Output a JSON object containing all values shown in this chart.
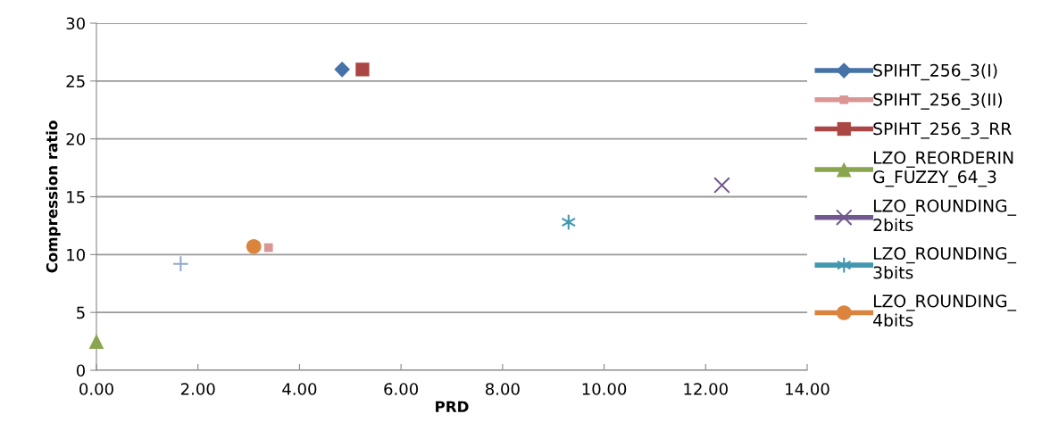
{
  "chart_data": {
    "type": "scatter",
    "xlabel": "PRD",
    "ylabel": "Compression ratio",
    "xlim": [
      0,
      14
    ],
    "ylim": [
      0,
      30
    ],
    "xticks": [
      {
        "value": 0,
        "label": "0.00"
      },
      {
        "value": 2,
        "label": "2.00"
      },
      {
        "value": 4,
        "label": "4.00"
      },
      {
        "value": 6,
        "label": "6.00"
      },
      {
        "value": 8,
        "label": "8.00"
      },
      {
        "value": 10,
        "label": "10.00"
      },
      {
        "value": 12,
        "label": "12.00"
      },
      {
        "value": 14,
        "label": "14.00"
      }
    ],
    "yticks": [
      0,
      5,
      10,
      15,
      20,
      25,
      30
    ],
    "grid": "y",
    "legend": "right",
    "series": [
      {
        "name": "SPIHT_256_3(I)",
        "color": "#4572a7",
        "marker": "diamond",
        "x": [
          4.84
        ],
        "values": [
          26.0
        ]
      },
      {
        "name": "SPIHT_256_3(II)",
        "color": "#d99694",
        "marker": "square",
        "x": [
          3.39
        ],
        "values": [
          10.6
        ]
      },
      {
        "name": "SPIHT_256_3_RR",
        "color": "#aa4643",
        "marker": "square",
        "x": [
          5.24
        ],
        "values": [
          26.0
        ]
      },
      {
        "name": "LZO_REORDERING_FUZZY_64_3",
        "color": "#89a54e",
        "marker": "triangle",
        "x": [
          0.0
        ],
        "values": [
          2.5
        ]
      },
      {
        "name": "LZO_ROUNDING_2bits",
        "color": "#71588f",
        "marker": "cross",
        "x": [
          12.32
        ],
        "values": [
          16.0
        ]
      },
      {
        "name": "LZO_ROUNDING_3bits",
        "color": "#4198af",
        "marker": "cross",
        "x": [
          9.3
        ],
        "values": [
          12.8
        ]
      },
      {
        "name": "LZO_ROUNDING_4bits",
        "color": "#db843d",
        "marker": "circle",
        "x": [
          3.1
        ],
        "values": [
          10.7
        ]
      },
      {
        "color": "#93a9cf",
        "marker": "cross",
        "x": [
          1.66
        ],
        "values": [
          9.2
        ]
      }
    ]
  }
}
